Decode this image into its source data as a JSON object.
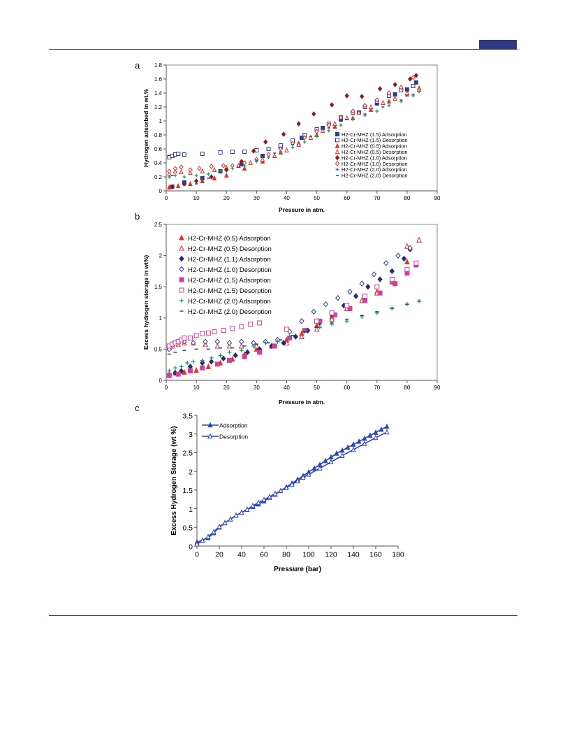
{
  "page": {
    "accent_color": "#2c3a86"
  },
  "chart_data": [
    {
      "panel_label": "a",
      "type": "scatter",
      "xlabel": "Pressure in atm.",
      "ylabel": "Hydrogen adsorbed in wt.%",
      "xlim": [
        0,
        90
      ],
      "ylim": [
        0,
        1.8
      ],
      "xticks": [
        0,
        10,
        20,
        30,
        40,
        50,
        60,
        70,
        80,
        90
      ],
      "yticks": [
        0,
        0.2,
        0.4,
        0.6,
        0.8,
        1,
        1.2,
        1.4,
        1.6,
        1.8
      ],
      "grid": false,
      "legend_position": "right",
      "series": [
        {
          "name": "H2-Cr-MHZ (1.5) Adsorption",
          "marker": "square-filled",
          "color": "#2a3d8f",
          "x": [
            2,
            6,
            12,
            18,
            25,
            32,
            38,
            45,
            52,
            58,
            64,
            70,
            76,
            80,
            83
          ],
          "y": [
            0.06,
            0.12,
            0.18,
            0.28,
            0.38,
            0.5,
            0.62,
            0.76,
            0.9,
            1.02,
            1.12,
            1.25,
            1.38,
            1.45,
            1.55
          ]
        },
        {
          "name": "H2-Cr-MHZ (1.5) Desorption",
          "marker": "square-open",
          "color": "#2a3d8f",
          "x": [
            1,
            2,
            3,
            4,
            6,
            12,
            18,
            22,
            26,
            30,
            34,
            38,
            42,
            46,
            50,
            54,
            58,
            62,
            66,
            70,
            74,
            78,
            82
          ],
          "y": [
            0.48,
            0.5,
            0.52,
            0.53,
            0.52,
            0.53,
            0.55,
            0.56,
            0.56,
            0.58,
            0.6,
            0.65,
            0.72,
            0.8,
            0.88,
            0.96,
            1.05,
            1.12,
            1.2,
            1.28,
            1.36,
            1.44,
            1.5
          ]
        },
        {
          "name": "H2-Cr-MHZ (0.5) Adsorption",
          "marker": "triangle-filled",
          "color": "#e0332b",
          "x": [
            1,
            4,
            8,
            12,
            16,
            20,
            26,
            32,
            38,
            44,
            50,
            56,
            62,
            68,
            74,
            80,
            84
          ],
          "y": [
            0.05,
            0.07,
            0.1,
            0.14,
            0.18,
            0.22,
            0.32,
            0.42,
            0.55,
            0.68,
            0.8,
            0.92,
            1.04,
            1.16,
            1.28,
            1.38,
            1.47
          ]
        },
        {
          "name": "H2-Cr-MHZ (0.5) Desorption",
          "marker": "triangle-open",
          "color": "#e0332b",
          "x": [
            1,
            3,
            5,
            8,
            12,
            16,
            20,
            24,
            28,
            32,
            36,
            40,
            44,
            48,
            52,
            56,
            60,
            64,
            68,
            72,
            76,
            80,
            84
          ],
          "y": [
            0.25,
            0.28,
            0.27,
            0.26,
            0.28,
            0.3,
            0.33,
            0.36,
            0.4,
            0.45,
            0.5,
            0.58,
            0.66,
            0.76,
            0.86,
            0.96,
            1.04,
            1.12,
            1.2,
            1.26,
            1.32,
            1.4,
            1.45
          ]
        },
        {
          "name": "H2-Cr-MHZ (1.0) Adsorption",
          "marker": "diamond-filled",
          "color": "#8b1a1a",
          "x": [
            2,
            6,
            10,
            15,
            20,
            25,
            29,
            33,
            39,
            44,
            49,
            55,
            60,
            65,
            71,
            76,
            81,
            83
          ],
          "y": [
            0.06,
            0.1,
            0.14,
            0.2,
            0.3,
            0.42,
            0.57,
            0.7,
            0.81,
            0.96,
            1.1,
            1.23,
            1.36,
            1.35,
            1.46,
            1.52,
            1.6,
            1.65
          ]
        },
        {
          "name": "H2-Cr-MHZ (1.0) Desorption",
          "marker": "diamond-open",
          "color": "#e0332b",
          "x": [
            1,
            3,
            5,
            8,
            11,
            15,
            19,
            22,
            26,
            30,
            34,
            38,
            42,
            46,
            50,
            54,
            58,
            62,
            66,
            70,
            74,
            78,
            82
          ],
          "y": [
            0.28,
            0.32,
            0.34,
            0.3,
            0.32,
            0.35,
            0.36,
            0.36,
            0.4,
            0.45,
            0.52,
            0.6,
            0.68,
            0.76,
            0.85,
            0.94,
            1.05,
            1.14,
            1.22,
            1.3,
            1.4,
            1.48,
            1.62
          ]
        },
        {
          "name": "H2-Cr-MHZ (2.0) Adsorption",
          "marker": "plus",
          "color": "#1f9a6a",
          "x": [
            1,
            3,
            6,
            10,
            14,
            18,
            22,
            26,
            30,
            34,
            38,
            42,
            46,
            50,
            54,
            58,
            62,
            66,
            70,
            74,
            78,
            82,
            84
          ],
          "y": [
            0.2,
            0.22,
            0.2,
            0.22,
            0.24,
            0.28,
            0.32,
            0.36,
            0.42,
            0.48,
            0.56,
            0.62,
            0.7,
            0.78,
            0.86,
            0.94,
            1.02,
            1.08,
            1.14,
            1.22,
            1.28,
            1.36,
            1.42
          ]
        },
        {
          "name": "H2-Cr-MHZ (2.0) Desorption",
          "marker": "dash",
          "color": "#2a3d8f",
          "x": [
            2,
            6,
            10,
            14,
            18,
            24,
            30,
            36,
            42,
            48,
            54,
            60,
            66,
            72,
            78,
            82
          ],
          "y": [
            0.22,
            0.08,
            0.1,
            0.18,
            0.26,
            0.34,
            0.44,
            0.54,
            0.66,
            0.78,
            0.9,
            1.02,
            1.1,
            1.2,
            1.3,
            1.38
          ]
        }
      ]
    },
    {
      "panel_label": "b",
      "type": "scatter",
      "xlabel": "Pressure in atm.",
      "ylabel": "Excess hydrogen storage in wt%)",
      "xlim": [
        0,
        90
      ],
      "ylim": [
        0,
        2.5
      ],
      "xticks": [
        0,
        10,
        20,
        30,
        40,
        50,
        60,
        70,
        80,
        90
      ],
      "yticks": [
        0,
        0.5,
        1,
        1.5,
        2,
        2.5
      ],
      "grid": false,
      "legend_position": "top-left",
      "series": [
        {
          "name": "H2-Cr-MHZ (0.5) Adsorption",
          "marker": "triangle-filled",
          "color": "#e0332b",
          "x": [
            1,
            3,
            6,
            10,
            14,
            18,
            22,
            26,
            30,
            35,
            40,
            45,
            50,
            55,
            60,
            65,
            70,
            75,
            80,
            84
          ],
          "y": [
            0.1,
            0.12,
            0.13,
            0.16,
            0.22,
            0.28,
            0.34,
            0.42,
            0.5,
            0.55,
            0.65,
            0.75,
            0.88,
            1.02,
            1.15,
            1.28,
            1.42,
            1.58,
            1.9,
            2.25
          ]
        },
        {
          "name": "H2-Cr-MHZ (0.5) Desorption",
          "marker": "triangle-open",
          "color": "#e0332b",
          "x": [
            1,
            2,
            4,
            6,
            9,
            13,
            17,
            21,
            25,
            30,
            35,
            40,
            45,
            50,
            55,
            60,
            65,
            70,
            75,
            80,
            84
          ],
          "y": [
            0.52,
            0.55,
            0.58,
            0.6,
            0.6,
            0.58,
            0.55,
            0.55,
            0.55,
            0.55,
            0.55,
            0.6,
            0.7,
            0.82,
            0.98,
            1.15,
            1.28,
            1.4,
            1.6,
            2.15,
            2.25
          ]
        },
        {
          "name": "H2-Cr-MHZ (1.1) Adsorption",
          "marker": "diamond-filled",
          "color": "#2a2a6e",
          "x": [
            1,
            3,
            5,
            8,
            12,
            15,
            19,
            23,
            27,
            31,
            35,
            39,
            43,
            47,
            51,
            55,
            59,
            63,
            67,
            71,
            75,
            79,
            81
          ],
          "y": [
            0.08,
            0.12,
            0.15,
            0.22,
            0.28,
            0.3,
            0.35,
            0.4,
            0.45,
            0.5,
            0.55,
            0.6,
            0.7,
            0.8,
            0.92,
            1.05,
            1.2,
            1.35,
            1.5,
            1.62,
            1.75,
            1.95,
            2.1
          ]
        },
        {
          "name": "H2-Cr-MHZ (1.0) Desorption",
          "marker": "diamond-open",
          "color": "#2a3d8f",
          "x": [
            1,
            2,
            4,
            6,
            9,
            13,
            17,
            21,
            25,
            29,
            33,
            37,
            41,
            45,
            49,
            53,
            57,
            61,
            65,
            69,
            73,
            77,
            81
          ],
          "y": [
            0.5,
            0.58,
            0.62,
            0.62,
            0.6,
            0.62,
            0.62,
            0.6,
            0.62,
            0.6,
            0.62,
            0.65,
            0.78,
            0.95,
            1.1,
            1.22,
            1.32,
            1.42,
            1.55,
            1.7,
            1.88,
            2.0,
            2.12
          ]
        },
        {
          "name": "H2-Cr-MHZ (1.5) Adsorption",
          "marker": "square-filled",
          "color": "#d63c9b",
          "x": [
            1,
            4,
            8,
            12,
            17,
            21,
            26,
            31,
            36,
            41,
            46,
            51,
            56,
            61,
            66,
            71,
            76,
            80,
            83
          ],
          "y": [
            0.08,
            0.1,
            0.15,
            0.2,
            0.26,
            0.32,
            0.38,
            0.45,
            0.55,
            0.68,
            0.8,
            0.95,
            1.05,
            1.15,
            1.28,
            1.4,
            1.55,
            1.72,
            1.85
          ]
        },
        {
          "name": "H2-Cr-MHZ (1.5) Desorption",
          "marker": "square-open",
          "color": "#d63c9b",
          "x": [
            1,
            2,
            3,
            4,
            5,
            6,
            8,
            10,
            12,
            14,
            16,
            19,
            22,
            25,
            28,
            31,
            40,
            50,
            55,
            60,
            66,
            70,
            75,
            80,
            83
          ],
          "y": [
            0.55,
            0.58,
            0.6,
            0.62,
            0.65,
            0.68,
            0.68,
            0.72,
            0.75,
            0.76,
            0.78,
            0.8,
            0.83,
            0.86,
            0.9,
            0.92,
            0.82,
            0.95,
            1.08,
            1.2,
            1.35,
            1.5,
            1.62,
            1.78,
            1.88
          ]
        },
        {
          "name": "H2-Cr-MHZ (2.0) Adsorption",
          "marker": "plus",
          "color": "#1f9a6a",
          "x": [
            1,
            3,
            5,
            7,
            9,
            12,
            15,
            18,
            21,
            25,
            29,
            33,
            37,
            41,
            46,
            51,
            55,
            60,
            65,
            70,
            75,
            80,
            84
          ],
          "y": [
            0.15,
            0.2,
            0.22,
            0.28,
            0.3,
            0.32,
            0.36,
            0.4,
            0.45,
            0.48,
            0.55,
            0.6,
            0.62,
            0.7,
            0.78,
            0.85,
            0.9,
            0.95,
            1.02,
            1.08,
            1.15,
            1.22,
            1.27
          ]
        },
        {
          "name": "H2-Cr-MHZ (2.0) Desorption",
          "marker": "dash",
          "color": "#2a3d8f",
          "x": [
            1,
            3,
            6,
            10,
            14,
            18,
            22,
            26,
            30,
            34,
            38,
            42,
            46,
            50,
            55,
            60,
            65,
            70,
            75,
            80,
            84
          ],
          "y": [
            0.42,
            0.45,
            0.48,
            0.5,
            0.5,
            0.52,
            0.52,
            0.55,
            0.58,
            0.6,
            0.65,
            0.72,
            0.78,
            0.85,
            0.92,
            0.98,
            1.04,
            1.1,
            1.16,
            1.22,
            1.27
          ]
        }
      ]
    },
    {
      "panel_label": "c",
      "type": "line",
      "xlabel": "Pressure (bar)",
      "ylabel": "Excess Hydrogen Storage (wt %)",
      "xlim": [
        0,
        180
      ],
      "ylim": [
        0,
        3.5
      ],
      "xticks": [
        0,
        20,
        40,
        60,
        80,
        100,
        120,
        140,
        160,
        180
      ],
      "yticks": [
        0,
        0.5,
        1,
        1.5,
        2,
        2.5,
        3,
        3.5
      ],
      "grid": false,
      "legend_position": "top-left",
      "series": [
        {
          "name": "Adsorption",
          "marker": "triangle-filled",
          "color": "#2a46b8",
          "x": [
            0,
            10,
            15,
            20,
            25,
            30,
            35,
            40,
            45,
            50,
            55,
            60,
            65,
            70,
            75,
            80,
            85,
            90,
            95,
            100,
            105,
            110,
            115,
            120,
            125,
            130,
            135,
            140,
            145,
            150,
            155,
            160,
            165,
            170
          ],
          "y": [
            0.1,
            0.22,
            0.35,
            0.5,
            0.62,
            0.72,
            0.82,
            0.9,
            0.98,
            1.05,
            1.12,
            1.2,
            1.3,
            1.38,
            1.48,
            1.58,
            1.68,
            1.78,
            1.88,
            1.98,
            2.08,
            2.18,
            2.28,
            2.38,
            2.48,
            2.56,
            2.64,
            2.72,
            2.8,
            2.88,
            2.96,
            3.04,
            3.12,
            3.2
          ]
        },
        {
          "name": "Desorption",
          "marker": "triangle-open",
          "color": "#2a46b8",
          "x": [
            0,
            5,
            10,
            15,
            20,
            25,
            30,
            35,
            40,
            45,
            50,
            55,
            60,
            65,
            70,
            75,
            80,
            85,
            90,
            95,
            100,
            110,
            120,
            130,
            140,
            150,
            160,
            170
          ],
          "y": [
            0.05,
            0.15,
            0.25,
            0.38,
            0.52,
            0.62,
            0.72,
            0.82,
            0.9,
            0.98,
            1.08,
            1.16,
            1.24,
            1.32,
            1.4,
            1.48,
            1.56,
            1.65,
            1.74,
            1.84,
            1.92,
            2.08,
            2.25,
            2.42,
            2.58,
            2.74,
            2.9,
            3.05
          ]
        }
      ]
    }
  ]
}
